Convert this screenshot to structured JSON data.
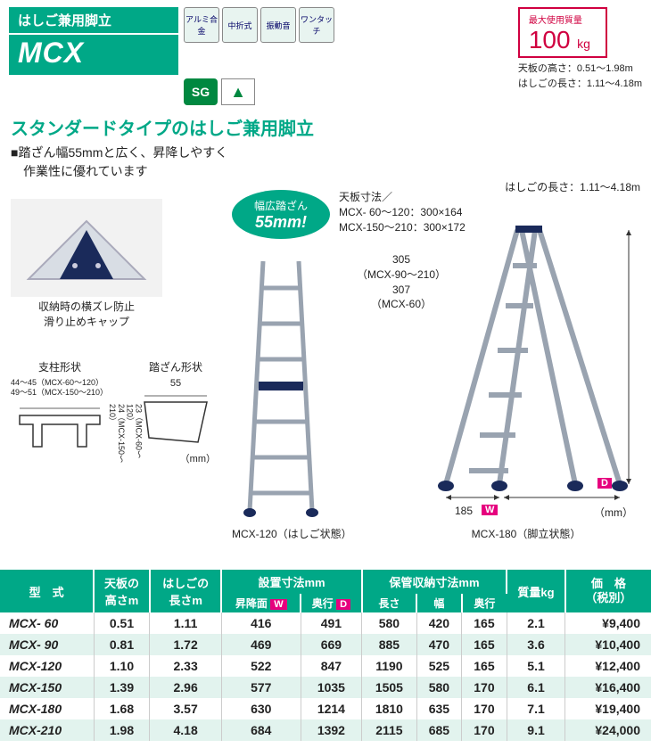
{
  "header": {
    "category": "はしご兼用脚立",
    "model": "MCX",
    "badges": [
      "アルミ合金",
      "中折式",
      "振動音",
      "ワンタッチ"
    ],
    "cert_sg": "SG",
    "cert_assoc": "▲"
  },
  "max_load": {
    "label": "最大使用質量",
    "value": "100",
    "unit": "kg"
  },
  "spec_lines": {
    "l1": "天板の高さ：0.51～1.98m",
    "l2": "はしごの長さ：1.11～4.18m"
  },
  "subtitle": "スタンダードタイプのはしご兼用脚立",
  "feature": {
    "l1": "■踏ざん幅55mmと広く、昇降しやすく",
    "l2": "　作業性に優れています"
  },
  "pill": {
    "line1": "幅広踏ざん",
    "line2": "55mm!"
  },
  "foot_caption": {
    "l1": "収納時の横ズレ防止",
    "l2": "滑り止めキャップ"
  },
  "top_dim": {
    "l1": "天板寸法／",
    "l2": "MCX- 60～120：300×164",
    "l3": "MCX-150～210：300×172"
  },
  "hinge": {
    "l1": "305",
    "l2": "（MCX-90～210）",
    "l3": "307",
    "l4": "（MCX-60）"
  },
  "ladder_len_note": "はしごの長さ：1.11～4.18m",
  "profiles": {
    "pillar_label": "支柱形状",
    "pillar_dim1": "44～45（MCX-60～120）",
    "pillar_dim2": "49～51（MCX-150～210）",
    "pillar_h1": "23（MCX-60～120）",
    "pillar_h2": "24（MCX-150～210）",
    "step_label": "踏ざん形状",
    "step_w": "55",
    "unit": "（mm）"
  },
  "ladder_ext_caption": "MCX-120（はしご状態）",
  "ladder_open_caption": "MCX-180（脚立状態）",
  "open_dims": {
    "w": "185",
    "w_label": "W",
    "d_label": "D",
    "unit": "（mm）"
  },
  "table": {
    "headers": {
      "model": "型　式",
      "top_h": "天板の\n高さm",
      "ladder_l": "はしごの\n長さm",
      "install": "設置寸法mm",
      "install_w": "昇降面",
      "install_d": "奥行",
      "storage": "保管収納寸法mm",
      "storage_l": "長さ",
      "storage_w": "幅",
      "storage_d": "奥行",
      "mass": "質量kg",
      "price": "価　格\n（税別）"
    },
    "rows": [
      {
        "model": "MCX-  60",
        "h": "0.51",
        "l": "1.11",
        "iw": "416",
        "id": "491",
        "sl": "580",
        "sw": "420",
        "sd": "165",
        "kg": "2.1",
        "price": "¥9,400"
      },
      {
        "model": "MCX-  90",
        "h": "0.81",
        "l": "1.72",
        "iw": "469",
        "id": "669",
        "sl": "885",
        "sw": "470",
        "sd": "165",
        "kg": "3.6",
        "price": "¥10,400"
      },
      {
        "model": "MCX-120",
        "h": "1.10",
        "l": "2.33",
        "iw": "522",
        "id": "847",
        "sl": "1190",
        "sw": "525",
        "sd": "165",
        "kg": "5.1",
        "price": "¥12,400"
      },
      {
        "model": "MCX-150",
        "h": "1.39",
        "l": "2.96",
        "iw": "577",
        "id": "1035",
        "sl": "1505",
        "sw": "580",
        "sd": "170",
        "kg": "6.1",
        "price": "¥16,400"
      },
      {
        "model": "MCX-180",
        "h": "1.68",
        "l": "3.57",
        "iw": "630",
        "id": "1214",
        "sl": "1810",
        "sw": "635",
        "sd": "170",
        "kg": "7.1",
        "price": "¥19,400"
      },
      {
        "model": "MCX-210",
        "h": "1.98",
        "l": "4.18",
        "iw": "684",
        "id": "1392",
        "sl": "2115",
        "sw": "685",
        "sd": "170",
        "kg": "9.1",
        "price": "¥24,000"
      }
    ]
  },
  "colors": {
    "brand": "#00a887",
    "accent": "#d00040",
    "pink": "#e6007e",
    "navy": "#1a2a5a"
  }
}
